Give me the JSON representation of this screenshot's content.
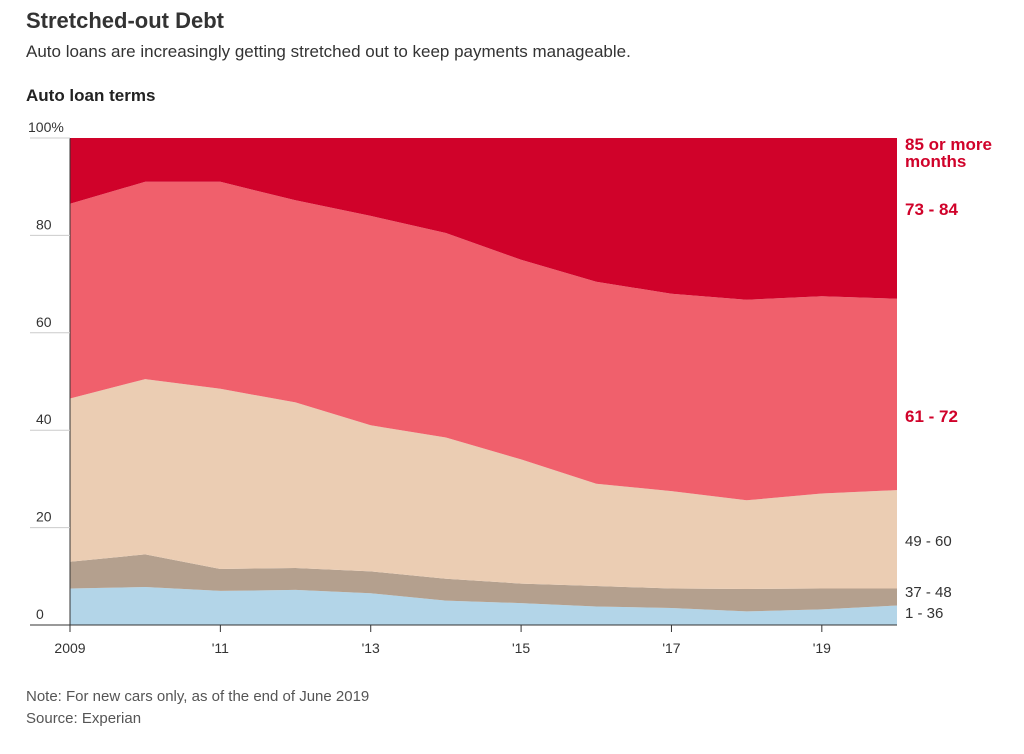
{
  "header": {
    "title": "Stretched-out Debt",
    "subtitle": "Auto loans are increasingly getting stretched out to keep payments manageable.",
    "chart_label": "Auto loan terms"
  },
  "footer": {
    "note": "Note: For new cars only, as of the end of June 2019",
    "source": "Source: Experian"
  },
  "chart_data": {
    "type": "area",
    "stacked": true,
    "x": [
      2009,
      2010,
      2011,
      2012,
      2013,
      2014,
      2015,
      2016,
      2017,
      2018,
      2019,
      2020
    ],
    "xlim": [
      2009,
      2020
    ],
    "ylim": [
      0,
      100
    ],
    "yticks": [
      0,
      20,
      40,
      60,
      80,
      100
    ],
    "ytick_labels": [
      "0",
      "20",
      "40",
      "60",
      "80",
      "100%"
    ],
    "xticks": [
      2009,
      2011,
      2013,
      2015,
      2017,
      2019
    ],
    "xtick_labels": [
      "2009",
      "'11",
      "'13",
      "'15",
      "'17",
      "'19"
    ],
    "series": [
      {
        "name": "1 - 36",
        "label_lines": [
          "1 - 36"
        ],
        "color": "#b3d5e8",
        "label_color": "#333333",
        "values": [
          7.5,
          7.8,
          7.0,
          7.2,
          6.5,
          5.0,
          4.5,
          3.8,
          3.5,
          2.8,
          3.2,
          4.0
        ]
      },
      {
        "name": "37 - 48",
        "label_lines": [
          "37 - 48"
        ],
        "color": "#b4a08e",
        "label_color": "#333333",
        "values": [
          5.5,
          6.7,
          4.5,
          4.5,
          4.5,
          4.5,
          4.0,
          4.2,
          4.0,
          4.6,
          4.3,
          3.5
        ]
      },
      {
        "name": "49 - 60",
        "label_lines": [
          "49 - 60"
        ],
        "color": "#ebcdb3",
        "label_color": "#333333",
        "values": [
          33.5,
          36.0,
          37.0,
          34.0,
          30.0,
          29.0,
          25.5,
          21.0,
          20.0,
          18.2,
          19.5,
          20.2
        ]
      },
      {
        "name": "61 - 72",
        "label_lines": [
          "61 - 72"
        ],
        "color": "#f0606c",
        "label_color": "#d0022a",
        "values": [
          40.0,
          40.5,
          42.5,
          41.5,
          43.0,
          42.0,
          41.0,
          41.5,
          40.5,
          41.2,
          40.5,
          39.3
        ]
      },
      {
        "name": "73 - 84",
        "label_lines": [
          "73 - 84"
        ],
        "color": "#d0022a",
        "label_color": "#d0022a",
        "values": [
          13.5,
          9.0,
          9.0,
          12.8,
          16.0,
          19.5,
          25.0,
          29.5,
          32.0,
          33.2,
          32.5,
          33.0
        ]
      },
      {
        "name": "85 or more months",
        "label_lines": [
          "85 or more",
          "months"
        ],
        "color": "#d0022a",
        "label_color": "#d0022a",
        "values": [
          0.0,
          0.0,
          0.0,
          0.0,
          0.0,
          0.0,
          0.0,
          0.0,
          0.0,
          0.0,
          0.0,
          0.0
        ]
      }
    ]
  }
}
